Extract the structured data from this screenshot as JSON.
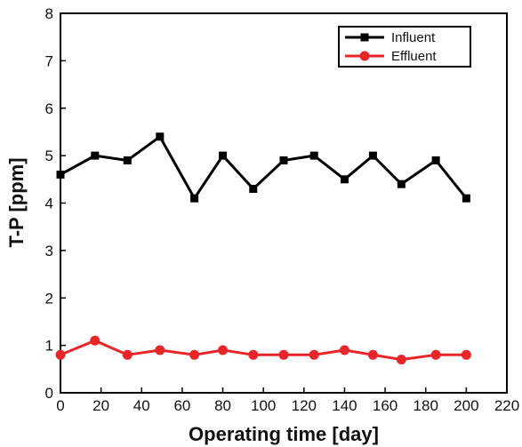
{
  "chart_data": {
    "type": "line",
    "title": "",
    "xlabel": "Operating time [day]",
    "ylabel": "T-P [ppm]",
    "xlim": [
      0,
      220
    ],
    "ylim": [
      0,
      8
    ],
    "xticks": [
      0,
      20,
      40,
      60,
      80,
      100,
      120,
      140,
      160,
      180,
      200,
      220
    ],
    "yticks": [
      0,
      1,
      2,
      3,
      4,
      5,
      6,
      7,
      8
    ],
    "grid": false,
    "legend_position": "top-right",
    "series": [
      {
        "name": "Influent",
        "color": "#000000",
        "marker": "square",
        "x": [
          0,
          17,
          33,
          49,
          66,
          80,
          95,
          110,
          125,
          140,
          154,
          168,
          185,
          200
        ],
        "y": [
          4.6,
          5.0,
          4.9,
          5.4,
          4.1,
          5.0,
          4.3,
          4.9,
          5.0,
          4.5,
          5.0,
          4.4,
          4.9,
          4.1
        ]
      },
      {
        "name": "Effluent",
        "color": "#e8262a",
        "marker": "circle",
        "x": [
          0,
          17,
          33,
          49,
          66,
          80,
          95,
          110,
          125,
          140,
          154,
          168,
          185,
          200
        ],
        "y": [
          0.8,
          1.1,
          0.8,
          0.9,
          0.8,
          0.9,
          0.8,
          0.8,
          0.8,
          0.9,
          0.8,
          0.7,
          0.8,
          0.8
        ]
      }
    ]
  }
}
